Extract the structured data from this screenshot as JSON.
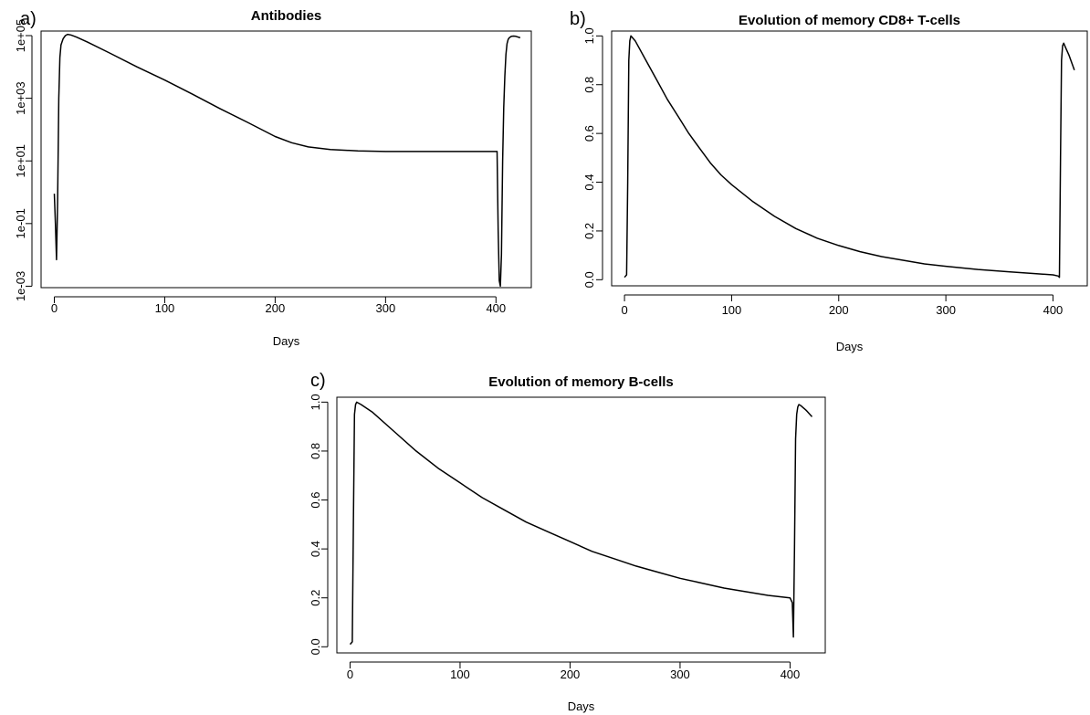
{
  "chart_data": [
    {
      "type": "line",
      "panel_label": "a)",
      "title": "Antibodies",
      "xlabel": "Days",
      "ylabel": "",
      "xlim": [
        -12,
        432
      ],
      "ylim": [
        0.0009,
        140000
      ],
      "yscale": "log",
      "xticks": [
        0,
        100,
        200,
        300,
        400
      ],
      "xtick_labels": [
        "0",
        "100",
        "200",
        "300",
        "400"
      ],
      "yticks": [
        0.001,
        0.1,
        10,
        1000,
        100000
      ],
      "ytick_labels": [
        "1e-03",
        "1e-01",
        "1e+01",
        "1e+03",
        "1e+05"
      ],
      "grid": false,
      "series": [
        {
          "x": [
            0,
            1,
            2,
            3,
            4,
            5,
            6,
            8,
            10,
            12,
            15,
            20,
            30,
            50,
            75,
            100,
            125,
            150,
            175,
            200,
            215,
            230,
            250,
            275,
            300,
            350,
            401,
            402,
            403,
            404,
            405,
            406,
            407,
            408,
            409,
            410,
            411,
            412,
            414,
            416,
            418,
            420,
            422
          ],
          "y": [
            0.9,
            0.1,
            0.007,
            0.5,
            1000,
            20000,
            50000,
            80000,
            100000,
            110000,
            105000,
            90000,
            62000,
            28000,
            10000,
            3800,
            1350,
            470,
            170,
            60,
            38,
            28,
            23,
            21,
            20,
            20,
            20,
            0.06,
            0.0015,
            0.001,
            0.01,
            10,
            500,
            5000,
            25000,
            55000,
            75000,
            85000,
            95000,
            97000,
            95000,
            90000,
            86000
          ],
          "color": "#000000"
        }
      ]
    },
    {
      "type": "line",
      "panel_label": "b)",
      "title": "Evolution of memory CD8+ T-cells",
      "xlabel": "Days",
      "ylabel": "",
      "xlim": [
        -12,
        432
      ],
      "ylim": [
        -0.025,
        1.02
      ],
      "xticks": [
        0,
        100,
        200,
        300,
        400
      ],
      "xtick_labels": [
        "0",
        "100",
        "200",
        "300",
        "400"
      ],
      "yticks": [
        0.0,
        0.2,
        0.4,
        0.6,
        0.8,
        1.0
      ],
      "ytick_labels": [
        "0.0",
        "0.2",
        "0.4",
        "0.6",
        "0.8",
        "1.0"
      ],
      "grid": false,
      "series": [
        {
          "x": [
            0,
            2,
            3,
            4,
            5,
            6,
            10,
            20,
            30,
            40,
            50,
            60,
            70,
            80,
            90,
            100,
            120,
            140,
            160,
            180,
            200,
            220,
            240,
            260,
            280,
            300,
            330,
            360,
            380,
            400,
            405,
            406,
            407,
            408,
            409,
            410,
            412,
            415,
            420
          ],
          "y": [
            0.01,
            0.02,
            0.4,
            0.9,
            0.98,
            1.0,
            0.98,
            0.9,
            0.82,
            0.74,
            0.67,
            0.6,
            0.54,
            0.48,
            0.43,
            0.39,
            0.32,
            0.26,
            0.21,
            0.17,
            0.14,
            0.115,
            0.095,
            0.08,
            0.065,
            0.055,
            0.042,
            0.032,
            0.026,
            0.02,
            0.015,
            0.01,
            0.5,
            0.9,
            0.96,
            0.97,
            0.95,
            0.92,
            0.86
          ],
          "color": "#000000"
        }
      ]
    },
    {
      "type": "line",
      "panel_label": "c)",
      "title": "Evolution of memory B-cells",
      "xlabel": "Days",
      "ylabel": "",
      "xlim": [
        -12,
        432
      ],
      "ylim": [
        -0.025,
        1.02
      ],
      "xticks": [
        0,
        100,
        200,
        300,
        400
      ],
      "xtick_labels": [
        "0",
        "100",
        "200",
        "300",
        "400"
      ],
      "yticks": [
        0.0,
        0.2,
        0.4,
        0.6,
        0.8,
        1.0
      ],
      "ytick_labels": [
        "0.0",
        "0.2",
        "0.4",
        "0.6",
        "0.8",
        "1.0"
      ],
      "grid": false,
      "series": [
        {
          "x": [
            0,
            2,
            3,
            4,
            5,
            6,
            10,
            20,
            40,
            60,
            80,
            100,
            120,
            140,
            160,
            180,
            200,
            220,
            240,
            260,
            280,
            300,
            320,
            340,
            360,
            380,
            400,
            402,
            403,
            404,
            405,
            406,
            407,
            408,
            410,
            415,
            420
          ],
          "y": [
            0.01,
            0.02,
            0.5,
            0.95,
            0.99,
            1.0,
            0.99,
            0.96,
            0.88,
            0.8,
            0.73,
            0.67,
            0.61,
            0.56,
            0.51,
            0.47,
            0.43,
            0.39,
            0.36,
            0.33,
            0.305,
            0.28,
            0.26,
            0.24,
            0.225,
            0.21,
            0.2,
            0.18,
            0.04,
            0.4,
            0.85,
            0.95,
            0.98,
            0.99,
            0.985,
            0.965,
            0.94
          ],
          "color": "#000000"
        }
      ]
    }
  ]
}
